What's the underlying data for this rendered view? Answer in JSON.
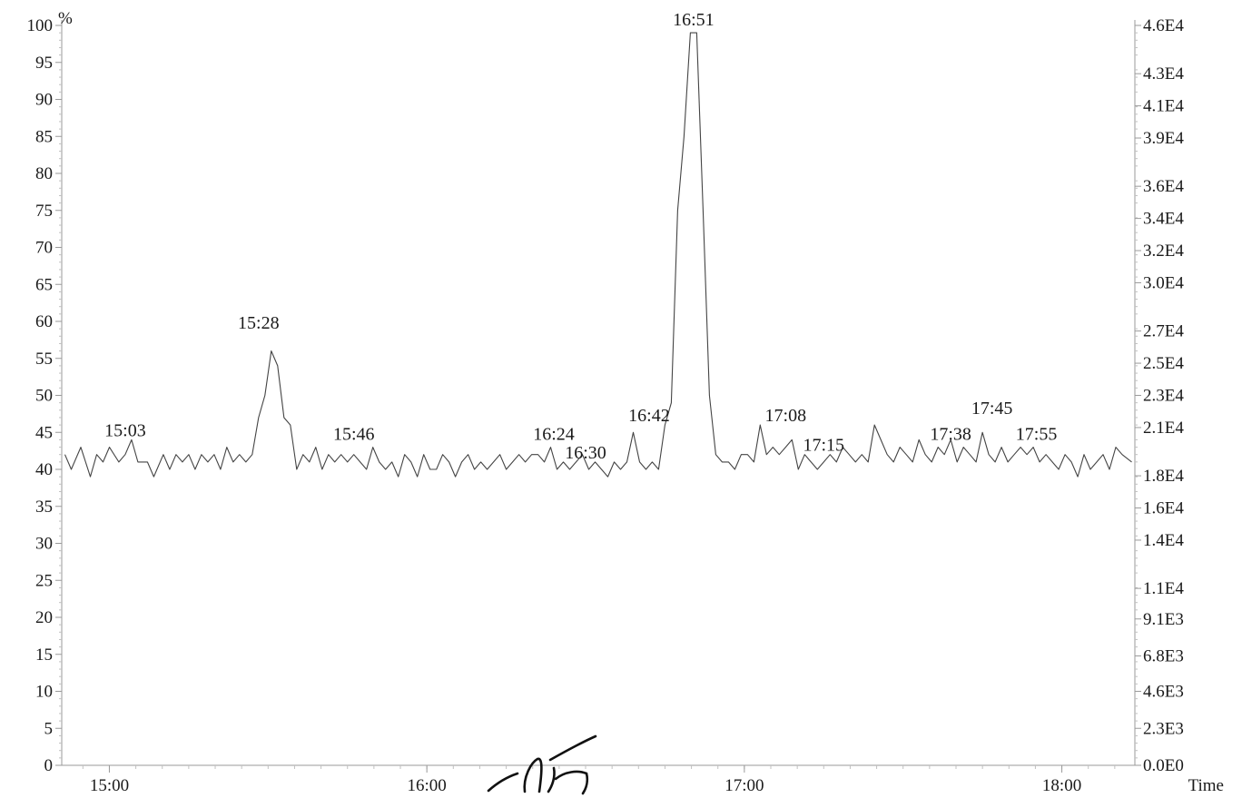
{
  "chart_data": {
    "type": "line",
    "title": "",
    "xlabel": "Time",
    "ylabel": "%",
    "y_unit_label": "%",
    "y2_label": "",
    "grid": false,
    "legend": "none",
    "xlim": [
      14.85,
      18.23
    ],
    "ylim": [
      0,
      100
    ],
    "y2lim": [
      0,
      46000
    ],
    "x_ticks": [
      {
        "value": 15.0,
        "label": "15:00"
      },
      {
        "value": 16.0,
        "label": "16:00"
      },
      {
        "value": 17.0,
        "label": "17:00"
      },
      {
        "value": 18.0,
        "label": "18:00"
      }
    ],
    "y_ticks": [
      {
        "value": 0,
        "label": "0"
      },
      {
        "value": 5,
        "label": "5"
      },
      {
        "value": 10,
        "label": "10"
      },
      {
        "value": 15,
        "label": "15"
      },
      {
        "value": 20,
        "label": "20"
      },
      {
        "value": 25,
        "label": "25"
      },
      {
        "value": 30,
        "label": "30"
      },
      {
        "value": 35,
        "label": "35"
      },
      {
        "value": 40,
        "label": "40"
      },
      {
        "value": 45,
        "label": "45"
      },
      {
        "value": 50,
        "label": "50"
      },
      {
        "value": 55,
        "label": "55"
      },
      {
        "value": 60,
        "label": "60"
      },
      {
        "value": 65,
        "label": "65"
      },
      {
        "value": 70,
        "label": "70"
      },
      {
        "value": 75,
        "label": "75"
      },
      {
        "value": 80,
        "label": "80"
      },
      {
        "value": 85,
        "label": "85"
      },
      {
        "value": 90,
        "label": "90"
      },
      {
        "value": 95,
        "label": "95"
      },
      {
        "value": 100,
        "label": "100"
      }
    ],
    "y2_ticks": [
      {
        "value": 0,
        "label": "0.0E0"
      },
      {
        "value": 2300,
        "label": "2.3E3"
      },
      {
        "value": 4600,
        "label": "4.6E3"
      },
      {
        "value": 6800,
        "label": "6.8E3"
      },
      {
        "value": 9100,
        "label": "9.1E3"
      },
      {
        "value": 11000,
        "label": "1.1E4"
      },
      {
        "value": 14000,
        "label": "1.4E4"
      },
      {
        "value": 16000,
        "label": "1.6E4"
      },
      {
        "value": 18000,
        "label": "1.8E4"
      },
      {
        "value": 21000,
        "label": "2.1E4"
      },
      {
        "value": 23000,
        "label": "2.3E4"
      },
      {
        "value": 25000,
        "label": "2.5E4"
      },
      {
        "value": 27000,
        "label": "2.7E4"
      },
      {
        "value": 30000,
        "label": "3.0E4"
      },
      {
        "value": 32000,
        "label": "3.2E4"
      },
      {
        "value": 34000,
        "label": "3.4E4"
      },
      {
        "value": 36000,
        "label": "3.6E4"
      },
      {
        "value": 39000,
        "label": "3.9E4"
      },
      {
        "value": 41000,
        "label": "4.1E4"
      },
      {
        "value": 43000,
        "label": "4.3E4"
      },
      {
        "value": 46000,
        "label": "4.6E4"
      }
    ],
    "series": [
      {
        "values": [
          [
            14.86,
            42
          ],
          [
            14.88,
            40
          ],
          [
            14.91,
            43
          ],
          [
            14.94,
            39
          ],
          [
            14.96,
            42
          ],
          [
            14.98,
            41
          ],
          [
            15.0,
            43
          ],
          [
            15.03,
            41
          ],
          [
            15.05,
            42
          ],
          [
            15.07,
            44
          ],
          [
            15.09,
            41
          ],
          [
            15.12,
            41
          ],
          [
            15.14,
            39
          ],
          [
            15.17,
            42
          ],
          [
            15.19,
            40
          ],
          [
            15.21,
            42
          ],
          [
            15.23,
            41
          ],
          [
            15.25,
            42
          ],
          [
            15.27,
            40
          ],
          [
            15.29,
            42
          ],
          [
            15.31,
            41
          ],
          [
            15.33,
            42
          ],
          [
            15.35,
            40
          ],
          [
            15.37,
            43
          ],
          [
            15.39,
            41
          ],
          [
            15.41,
            42
          ],
          [
            15.43,
            41
          ],
          [
            15.45,
            42
          ],
          [
            15.47,
            47
          ],
          [
            15.49,
            50
          ],
          [
            15.51,
            56
          ],
          [
            15.53,
            54
          ],
          [
            15.55,
            47
          ],
          [
            15.57,
            46
          ],
          [
            15.59,
            40
          ],
          [
            15.61,
            42
          ],
          [
            15.63,
            41
          ],
          [
            15.65,
            43
          ],
          [
            15.67,
            40
          ],
          [
            15.69,
            42
          ],
          [
            15.71,
            41
          ],
          [
            15.73,
            42
          ],
          [
            15.75,
            41
          ],
          [
            15.77,
            42
          ],
          [
            15.79,
            41
          ],
          [
            15.81,
            40
          ],
          [
            15.83,
            43
          ],
          [
            15.85,
            41
          ],
          [
            15.87,
            40
          ],
          [
            15.89,
            41
          ],
          [
            15.91,
            39
          ],
          [
            15.93,
            42
          ],
          [
            15.95,
            41
          ],
          [
            15.97,
            39
          ],
          [
            15.99,
            42
          ],
          [
            16.01,
            40
          ],
          [
            16.03,
            40
          ],
          [
            16.05,
            42
          ],
          [
            16.07,
            41
          ],
          [
            16.09,
            39
          ],
          [
            16.11,
            41
          ],
          [
            16.13,
            42
          ],
          [
            16.15,
            40
          ],
          [
            16.17,
            41
          ],
          [
            16.19,
            40
          ],
          [
            16.21,
            41
          ],
          [
            16.23,
            42
          ],
          [
            16.25,
            40
          ],
          [
            16.27,
            41
          ],
          [
            16.29,
            42
          ],
          [
            16.31,
            41
          ],
          [
            16.33,
            42
          ],
          [
            16.35,
            42
          ],
          [
            16.37,
            41
          ],
          [
            16.39,
            43
          ],
          [
            16.41,
            40
          ],
          [
            16.43,
            41
          ],
          [
            16.45,
            40
          ],
          [
            16.47,
            41
          ],
          [
            16.49,
            42
          ],
          [
            16.51,
            40
          ],
          [
            16.53,
            41
          ],
          [
            16.55,
            40
          ],
          [
            16.57,
            39
          ],
          [
            16.59,
            41
          ],
          [
            16.61,
            40
          ],
          [
            16.63,
            41
          ],
          [
            16.65,
            45
          ],
          [
            16.67,
            41
          ],
          [
            16.69,
            40
          ],
          [
            16.71,
            41
          ],
          [
            16.73,
            40
          ],
          [
            16.75,
            46
          ],
          [
            16.77,
            49
          ],
          [
            16.79,
            75
          ],
          [
            16.81,
            85
          ],
          [
            16.83,
            99
          ],
          [
            16.85,
            99
          ],
          [
            16.87,
            75
          ],
          [
            16.89,
            50
          ],
          [
            16.91,
            42
          ],
          [
            16.93,
            41
          ],
          [
            16.95,
            41
          ],
          [
            16.97,
            40
          ],
          [
            16.99,
            42
          ],
          [
            17.01,
            42
          ],
          [
            17.03,
            41
          ],
          [
            17.05,
            46
          ],
          [
            17.07,
            42
          ],
          [
            17.09,
            43
          ],
          [
            17.11,
            42
          ],
          [
            17.13,
            43
          ],
          [
            17.15,
            44
          ],
          [
            17.17,
            40
          ],
          [
            17.19,
            42
          ],
          [
            17.21,
            41
          ],
          [
            17.23,
            40
          ],
          [
            17.25,
            41
          ],
          [
            17.27,
            42
          ],
          [
            17.29,
            41
          ],
          [
            17.31,
            43
          ],
          [
            17.33,
            42
          ],
          [
            17.35,
            41
          ],
          [
            17.37,
            42
          ],
          [
            17.39,
            41
          ],
          [
            17.41,
            46
          ],
          [
            17.43,
            44
          ],
          [
            17.45,
            42
          ],
          [
            17.47,
            41
          ],
          [
            17.49,
            43
          ],
          [
            17.51,
            42
          ],
          [
            17.53,
            41
          ],
          [
            17.55,
            44
          ],
          [
            17.57,
            42
          ],
          [
            17.59,
            41
          ],
          [
            17.61,
            43
          ],
          [
            17.63,
            42
          ],
          [
            17.65,
            44
          ],
          [
            17.67,
            41
          ],
          [
            17.69,
            43
          ],
          [
            17.71,
            42
          ],
          [
            17.73,
            41
          ],
          [
            17.75,
            45
          ],
          [
            17.77,
            42
          ],
          [
            17.79,
            41
          ],
          [
            17.81,
            43
          ],
          [
            17.83,
            41
          ],
          [
            17.85,
            42
          ],
          [
            17.87,
            43
          ],
          [
            17.89,
            42
          ],
          [
            17.91,
            43
          ],
          [
            17.93,
            41
          ],
          [
            17.95,
            42
          ],
          [
            17.97,
            41
          ],
          [
            17.99,
            40
          ],
          [
            18.01,
            42
          ],
          [
            18.03,
            41
          ],
          [
            18.05,
            39
          ],
          [
            18.07,
            42
          ],
          [
            18.09,
            40
          ],
          [
            18.11,
            41
          ],
          [
            18.13,
            42
          ],
          [
            18.15,
            40
          ],
          [
            18.17,
            43
          ],
          [
            18.19,
            42
          ],
          [
            18.22,
            41
          ]
        ]
      }
    ],
    "annotations": [
      {
        "x": 15.05,
        "y": 44.5,
        "label": "15:03"
      },
      {
        "x": 15.47,
        "y": 59,
        "label": "15:28"
      },
      {
        "x": 15.77,
        "y": 44,
        "label": "15:46"
      },
      {
        "x": 16.4,
        "y": 44,
        "label": "16:24"
      },
      {
        "x": 16.5,
        "y": 41.5,
        "label": "16:30"
      },
      {
        "x": 16.7,
        "y": 46.5,
        "label": "16:42"
      },
      {
        "x": 16.84,
        "y": 100,
        "label": "16:51"
      },
      {
        "x": 17.13,
        "y": 46.5,
        "label": "17:08"
      },
      {
        "x": 17.25,
        "y": 42.5,
        "label": "17:15"
      },
      {
        "x": 17.65,
        "y": 44,
        "label": "17:38"
      },
      {
        "x": 17.78,
        "y": 47.5,
        "label": "17:45"
      },
      {
        "x": 17.92,
        "y": 44,
        "label": "17:55"
      }
    ]
  }
}
